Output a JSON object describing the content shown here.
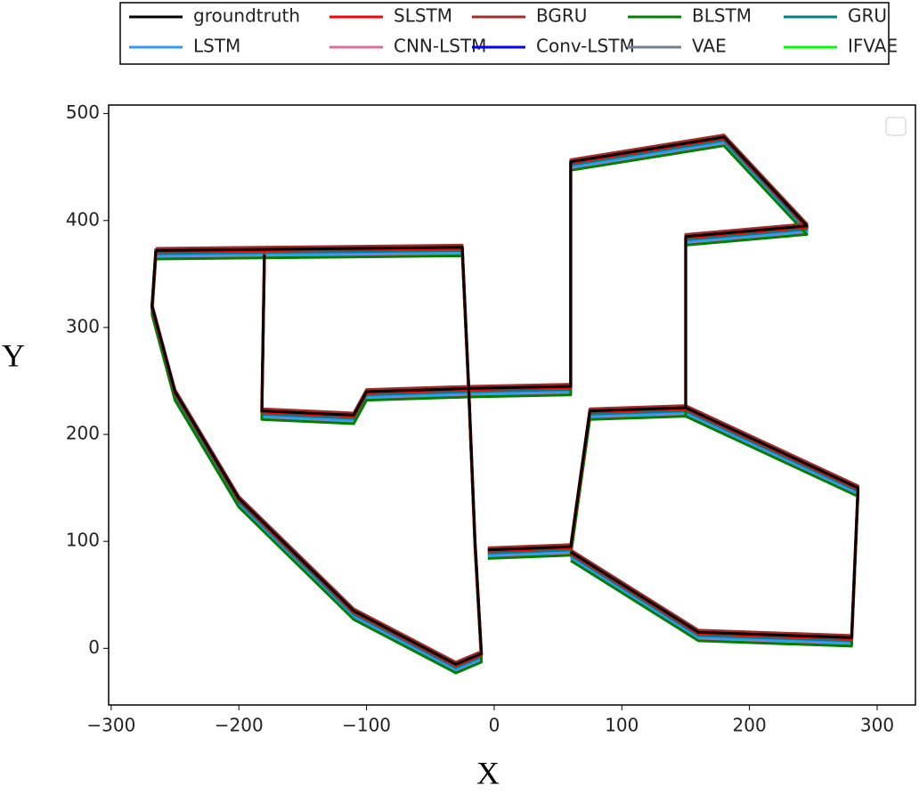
{
  "chart_data": {
    "type": "line",
    "x_label": "X",
    "y_label": "Y",
    "xlim": [
      -302,
      330
    ],
    "ylim": [
      -53,
      508
    ],
    "xticks": [
      {
        "value": -300,
        "label": "−300"
      },
      {
        "value": -200,
        "label": "−200"
      },
      {
        "value": -100,
        "label": "−100"
      },
      0,
      100,
      200,
      300
    ],
    "yticks": [
      0,
      100,
      200,
      300,
      400,
      500
    ],
    "x": [
      -265,
      -25,
      -20,
      -15,
      -10,
      -30,
      -110,
      -200,
      -250,
      -268,
      -265,
      null,
      -180,
      -182,
      -110,
      -100,
      -20,
      60,
      60,
      180,
      245,
      150,
      150,
      75,
      60,
      -5,
      null,
      150,
      285,
      280,
      160,
      60
    ],
    "series": [
      {
        "name": "groundtruth",
        "color": "#000000",
        "values": [
          372,
          375,
          245,
          100,
          -5,
          -15,
          35,
          140,
          240,
          320,
          372,
          null,
          368,
          222,
          218,
          240,
          243,
          245,
          455,
          478,
          395,
          385,
          225,
          222,
          95,
          92,
          null,
          225,
          150,
          10,
          15,
          90
        ]
      },
      {
        "name": "SLSTM",
        "color": "#ff0000",
        "values": [
          371,
          374,
          244,
          99,
          -6,
          -16,
          34,
          139,
          239,
          319,
          371,
          null,
          367,
          221,
          217,
          239,
          242,
          244,
          454,
          477,
          394,
          384,
          224,
          221,
          94,
          91,
          null,
          224,
          149,
          9,
          14,
          89
        ]
      },
      {
        "name": "BGRU",
        "color": "#a52a2a",
        "values": [
          374,
          377,
          247,
          102,
          -3,
          -13,
          37,
          142,
          242,
          322,
          374,
          null,
          370,
          224,
          220,
          242,
          245,
          247,
          457,
          480,
          397,
          387,
          227,
          224,
          97,
          94,
          null,
          227,
          152,
          12,
          17,
          92
        ]
      },
      {
        "name": "BLSTM",
        "color": "#008000",
        "values": [
          364,
          367,
          237,
          92,
          -13,
          -23,
          27,
          132,
          232,
          312,
          364,
          null,
          360,
          214,
          210,
          232,
          235,
          237,
          447,
          470,
          387,
          377,
          217,
          214,
          87,
          84,
          null,
          217,
          142,
          2,
          7,
          82
        ]
      },
      {
        "name": "GRU",
        "color": "#008080",
        "values": [
          369,
          372,
          242,
          97,
          -8,
          -18,
          32,
          137,
          237,
          317,
          369,
          null,
          365,
          219,
          215,
          237,
          240,
          242,
          452,
          475,
          392,
          382,
          222,
          219,
          92,
          89,
          null,
          222,
          147,
          7,
          12,
          87
        ]
      },
      {
        "name": "LSTM",
        "color": "#3399ff",
        "values": [
          367,
          370,
          240,
          95,
          -10,
          -20,
          30,
          135,
          235,
          315,
          367,
          null,
          363,
          217,
          213,
          235,
          238,
          240,
          450,
          473,
          390,
          380,
          220,
          217,
          90,
          87,
          null,
          220,
          145,
          5,
          10,
          85
        ]
      },
      {
        "name": "CNN-LSTM",
        "color": "#db7093",
        "values": [
          366,
          369,
          239,
          94,
          -11,
          -21,
          29,
          134,
          234,
          314,
          366,
          null,
          362,
          216,
          212,
          234,
          237,
          239,
          449,
          472,
          389,
          379,
          219,
          216,
          89,
          86,
          null,
          219,
          144,
          4,
          9,
          84
        ]
      },
      {
        "name": "Conv-LSTM",
        "color": "#0000ff",
        "values": [
          370,
          373,
          243,
          98,
          -7,
          -17,
          33,
          138,
          238,
          318,
          370,
          null,
          366,
          220,
          216,
          238,
          241,
          243,
          453,
          476,
          393,
          383,
          223,
          220,
          93,
          90,
          null,
          223,
          148,
          8,
          13,
          88
        ]
      },
      {
        "name": "VAE",
        "color": "#708090",
        "values": [
          368,
          371,
          241,
          96,
          -9,
          -19,
          31,
          136,
          236,
          316,
          368,
          null,
          364,
          218,
          214,
          236,
          239,
          241,
          451,
          474,
          391,
          381,
          221,
          218,
          91,
          88,
          null,
          221,
          146,
          6,
          11,
          86
        ]
      },
      {
        "name": "IFVAE",
        "color": "#00ff00",
        "values": [
          373,
          376,
          246,
          101,
          -4,
          -14,
          36,
          141,
          241,
          321,
          373,
          null,
          369,
          223,
          219,
          241,
          244,
          246,
          456,
          479,
          396,
          386,
          226,
          223,
          96,
          93,
          null,
          226,
          151,
          11,
          16,
          91
        ]
      }
    ]
  }
}
